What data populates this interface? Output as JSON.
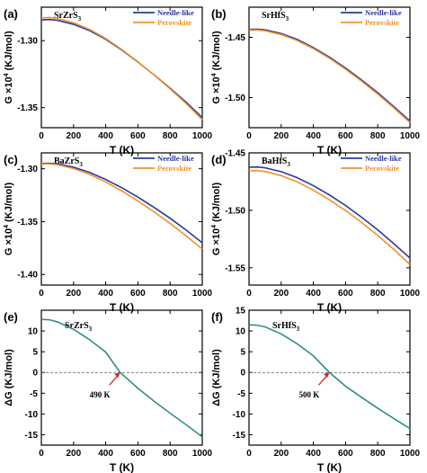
{
  "colors": {
    "needle": "#2b3a9c",
    "perovskite": "#f0922b",
    "delta": "#2f8f86",
    "arrow": "#d9262b",
    "axis": "#000000"
  },
  "chart_data": [
    {
      "panel": "(a)",
      "type": "line",
      "compound": "SrZrS",
      "subscript": "3",
      "xlabel": "T (K)",
      "ylabel_pre": "G ×10",
      "ylabel_exp": "4",
      "ylabel_post": " (KJ/mol)",
      "xlim": [
        0,
        1000
      ],
      "ylim": [
        -1.365,
        -1.275
      ],
      "xticks": [
        0,
        200,
        400,
        600,
        800,
        1000
      ],
      "xtick_labels": [
        "0",
        "200",
        "400",
        "600",
        "800",
        "1000"
      ],
      "yticks": [
        -1.3,
        -1.35
      ],
      "ytick_labels": [
        "-1.30",
        "-1.35"
      ],
      "legend": "top-right",
      "series": [
        {
          "name": "Needle-like",
          "color_key": "needle",
          "x": [
            0,
            50,
            100,
            200,
            300,
            400,
            500,
            600,
            700,
            800,
            900,
            1000
          ],
          "y": [
            -1.2845,
            -1.2842,
            -1.2848,
            -1.2878,
            -1.2925,
            -1.299,
            -1.307,
            -1.316,
            -1.3255,
            -1.3355,
            -1.346,
            -1.3575
          ]
        },
        {
          "name": "Perovskite",
          "color_key": "perovskite",
          "x": [
            0,
            50,
            100,
            200,
            300,
            400,
            500,
            600,
            700,
            800,
            900,
            1000
          ],
          "y": [
            -1.283,
            -1.2827,
            -1.2834,
            -1.2866,
            -1.2916,
            -1.2984,
            -1.3066,
            -1.3158,
            -1.3256,
            -1.336,
            -1.347,
            -1.359
          ]
        }
      ]
    },
    {
      "panel": "(b)",
      "type": "line",
      "compound": "SrHfS",
      "subscript": "3",
      "xlabel": "T (K)",
      "ylabel_pre": "G ×10",
      "ylabel_exp": "4",
      "ylabel_post": " (KJ/mol)",
      "xlim": [
        0,
        1000
      ],
      "ylim": [
        -1.525,
        -1.425
      ],
      "xticks": [
        0,
        200,
        400,
        600,
        800,
        1000
      ],
      "xtick_labels": [
        "0",
        "200",
        "400",
        "600",
        "800",
        "1000"
      ],
      "yticks": [
        -1.45,
        -1.5
      ],
      "ytick_labels": [
        "-1.45",
        "-1.50"
      ],
      "legend": "top-right",
      "series": [
        {
          "name": "Needle-like",
          "color_key": "needle",
          "x": [
            0,
            50,
            100,
            200,
            300,
            400,
            500,
            600,
            700,
            800,
            900,
            1000
          ],
          "y": [
            -1.4435,
            -1.4432,
            -1.4438,
            -1.4468,
            -1.4518,
            -1.4585,
            -1.4665,
            -1.4755,
            -1.4855,
            -1.496,
            -1.5075,
            -1.5195
          ]
        },
        {
          "name": "Perovskite",
          "color_key": "perovskite",
          "x": [
            0,
            50,
            100,
            200,
            300,
            400,
            500,
            600,
            700,
            800,
            900,
            1000
          ],
          "y": [
            -1.4442,
            -1.4439,
            -1.4446,
            -1.4477,
            -1.4527,
            -1.4594,
            -1.4674,
            -1.4765,
            -1.4865,
            -1.4971,
            -1.5086,
            -1.5207
          ]
        }
      ]
    },
    {
      "panel": "(c)",
      "type": "line",
      "compound": "BaZrS",
      "subscript": "3",
      "xlabel": "T (K)",
      "ylabel_pre": "G ×10",
      "ylabel_exp": "4",
      "ylabel_post": " (KJ/mol)",
      "xlim": [
        0,
        1000
      ],
      "ylim": [
        -1.41,
        -1.285
      ],
      "xticks": [
        0,
        200,
        400,
        600,
        800,
        1000
      ],
      "xtick_labels": [
        "0",
        "200",
        "400",
        "600",
        "800",
        "1000"
      ],
      "yticks": [
        -1.3,
        -1.35,
        -1.4
      ],
      "ytick_labels": [
        "-1.30",
        "-1.35",
        "-1.40"
      ],
      "legend": "top-right",
      "series": [
        {
          "name": "Needle-like",
          "color_key": "needle",
          "x": [
            0,
            50,
            100,
            200,
            300,
            400,
            500,
            600,
            700,
            800,
            900,
            1000
          ],
          "y": [
            -1.295,
            -1.2948,
            -1.2954,
            -1.2985,
            -1.3035,
            -1.3102,
            -1.318,
            -1.3268,
            -1.3365,
            -1.3468,
            -1.358,
            -1.37
          ]
        },
        {
          "name": "Perovskite",
          "color_key": "perovskite",
          "x": [
            0,
            50,
            100,
            200,
            300,
            400,
            500,
            600,
            700,
            800,
            900,
            1000
          ],
          "y": [
            -1.2955,
            -1.2954,
            -1.2962,
            -1.2998,
            -1.3053,
            -1.3126,
            -1.321,
            -1.3305,
            -1.3408,
            -1.3517,
            -1.3635,
            -1.376
          ]
        }
      ]
    },
    {
      "panel": "(d)",
      "type": "line",
      "compound": "BaHfS",
      "subscript": "3",
      "xlabel": "T (K)",
      "ylabel_pre": "G ×10",
      "ylabel_exp": "4",
      "ylabel_post": " (KJ/mol)",
      "xlim": [
        0,
        1000
      ],
      "ylim": [
        -1.565,
        -1.45
      ],
      "xticks": [
        0,
        200,
        400,
        600,
        800,
        1000
      ],
      "xtick_labels": [
        "0",
        "200",
        "400",
        "600",
        "800",
        "1000"
      ],
      "yticks": [
        -1.45,
        -1.5,
        -1.55
      ],
      "ytick_labels": [
        "-1.45",
        "-1.50",
        "-1.55"
      ],
      "legend": "top-right",
      "series": [
        {
          "name": "Needle-like",
          "color_key": "needle",
          "x": [
            0,
            50,
            100,
            200,
            300,
            400,
            500,
            600,
            700,
            800,
            900,
            1000
          ],
          "y": [
            -1.4625,
            -1.4623,
            -1.463,
            -1.4663,
            -1.4716,
            -1.4785,
            -1.4866,
            -1.4958,
            -1.506,
            -1.517,
            -1.529,
            -1.5415
          ]
        },
        {
          "name": "Perovskite",
          "color_key": "perovskite",
          "x": [
            0,
            50,
            100,
            200,
            300,
            400,
            500,
            600,
            700,
            800,
            900,
            1000
          ],
          "y": [
            -1.4655,
            -1.4654,
            -1.4662,
            -1.4698,
            -1.4753,
            -1.4824,
            -1.4908,
            -1.5002,
            -1.5106,
            -1.5218,
            -1.534,
            -1.547
          ]
        }
      ]
    },
    {
      "panel": "(e)",
      "type": "line",
      "compound": "SrZrS",
      "subscript": "3",
      "xlabel": "T (K)",
      "ylabel": "ΔG (KJ/mol)",
      "xlim": [
        0,
        1000
      ],
      "ylim": [
        -17.5,
        15
      ],
      "xticks": [
        0,
        200,
        400,
        600,
        800,
        1000
      ],
      "xtick_labels": [
        "0",
        "200",
        "400",
        "600",
        "800",
        "1000"
      ],
      "yticks": [
        10,
        5,
        0,
        -5,
        -10,
        -15
      ],
      "ytick_labels": [
        "10",
        "5",
        "0",
        "-5",
        "-10",
        "-15"
      ],
      "zero_line": true,
      "annotation": {
        "text": "490 K",
        "x": 490,
        "y": 0
      },
      "series": [
        {
          "color_key": "delta",
          "x": [
            0,
            50,
            100,
            200,
            300,
            400,
            490,
            600,
            700,
            800,
            900,
            1000
          ],
          "y": [
            12.8,
            12.7,
            12.2,
            10.4,
            7.9,
            4.9,
            0.0,
            -3.8,
            -6.9,
            -9.8,
            -12.6,
            -15.5
          ]
        }
      ]
    },
    {
      "panel": "(f)",
      "type": "line",
      "compound": "SrHfS",
      "subscript": "3",
      "xlabel": "T (K)",
      "ylabel": "ΔG (KJ/mol)",
      "xlim": [
        0,
        1000
      ],
      "ylim": [
        -17.5,
        15
      ],
      "xticks": [
        0,
        200,
        400,
        600,
        800,
        1000
      ],
      "xtick_labels": [
        "0",
        "200",
        "400",
        "600",
        "800",
        "1000"
      ],
      "yticks": [
        15,
        10,
        5,
        0,
        -5,
        -10,
        -15
      ],
      "ytick_labels": [
        "15",
        "10",
        "5",
        "0",
        "-5",
        "-10",
        "-15"
      ],
      "zero_line": true,
      "annotation": {
        "text": "500 K",
        "x": 500,
        "y": 0
      },
      "series": [
        {
          "color_key": "delta",
          "x": [
            0,
            50,
            100,
            200,
            300,
            400,
            500,
            600,
            700,
            800,
            900,
            1000
          ],
          "y": [
            11.5,
            11.4,
            11.0,
            9.3,
            6.9,
            4.0,
            0.0,
            -3.3,
            -6.0,
            -8.6,
            -11.1,
            -13.5
          ]
        }
      ]
    }
  ]
}
